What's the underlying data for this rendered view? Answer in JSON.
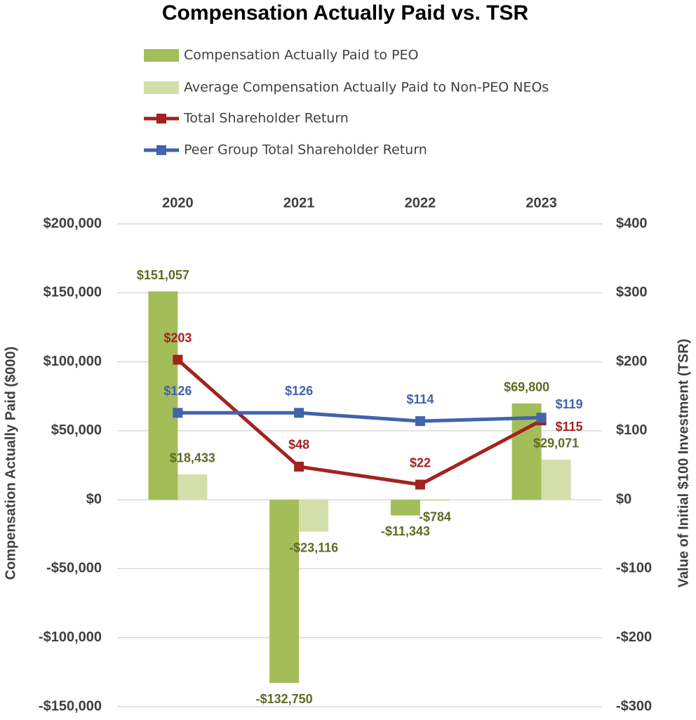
{
  "chart_data": {
    "type": "bar",
    "title": "Compensation Actually Paid vs. TSR",
    "categories": [
      "2020",
      "2021",
      "2022",
      "2023"
    ],
    "y_label": "Compensation Actually Paid ($000)",
    "y2_label": "Value of Initial $100 Investment (TSR)",
    "legend_position": "top",
    "grid": true,
    "ylim": [
      -150000,
      200000
    ],
    "yticks": [
      {
        "value": -150000,
        "label": "-$150,000"
      },
      {
        "value": -100000,
        "label": "-$100,000"
      },
      {
        "value": -50000,
        "label": "-$50,000"
      },
      {
        "value": 0,
        "label": "$0"
      },
      {
        "value": 50000,
        "label": "$50,000"
      },
      {
        "value": 100000,
        "label": "$100,000"
      },
      {
        "value": 150000,
        "label": "$150,000"
      },
      {
        "value": 200000,
        "label": "$200,000"
      }
    ],
    "y2lim": [
      -300,
      400
    ],
    "y2ticks": [
      {
        "value": -300,
        "label": "-$300"
      },
      {
        "value": -200,
        "label": "-$200"
      },
      {
        "value": -100,
        "label": "-$100"
      },
      {
        "value": 0,
        "label": "$0"
      },
      {
        "value": 100,
        "label": "$100"
      },
      {
        "value": 200,
        "label": "$200"
      },
      {
        "value": 300,
        "label": "$300"
      },
      {
        "value": 400,
        "label": "$400"
      }
    ],
    "series": [
      {
        "name": "Compensation Actually Paid to PEO",
        "type": "bar",
        "color": "#a3bd58",
        "values": [
          151057,
          -132750,
          -11343,
          69800
        ],
        "value_labels": [
          "$151,057",
          "-$132,750",
          "-$11,343",
          "$69,800"
        ]
      },
      {
        "name": "Average Compensation Actually Paid to Non-PEO NEOs",
        "type": "bar",
        "color": "#d2dfab",
        "values": [
          18433,
          -23116,
          -784,
          29071
        ],
        "value_labels": [
          "$18,433",
          "-$23,116",
          "-$784",
          "$29,071"
        ]
      },
      {
        "name": "Total Shareholder Return",
        "type": "line",
        "axis": "y2",
        "color": "#a3221f",
        "values": [
          203,
          48,
          22,
          115
        ],
        "value_labels": [
          "$203",
          "$48",
          "$22",
          "$115"
        ]
      },
      {
        "name": "Peer Group Total Shareholder Return",
        "type": "line",
        "axis": "y2",
        "color": "#4063ac",
        "values": [
          126,
          126,
          114,
          119
        ],
        "value_labels": [
          "$126",
          "$126",
          "$114",
          "$119"
        ]
      }
    ]
  }
}
